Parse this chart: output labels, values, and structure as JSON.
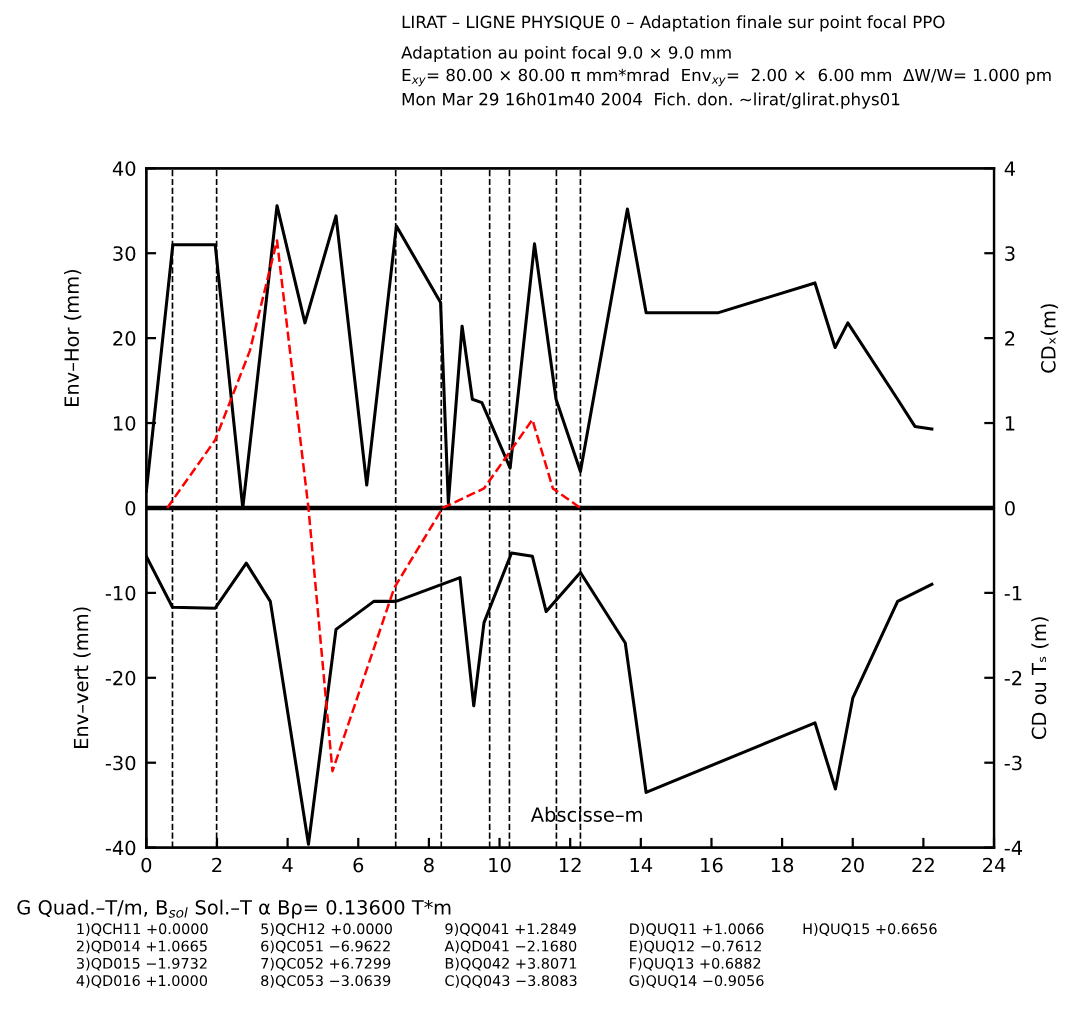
{
  "chart_data": {
    "type": "line",
    "title": "LIRAT – LIGNE PHYSIQUE 0 – Adaptation finale sur point focal PPO",
    "subtitle": "Adaptation au point focal 9.0 × 9.0 mm\nE$_{xy}$= 80.00 × 80.00 π mm*mrad  Env$_{xy}$=  2.00 ×  6.00 mm  ΔW/W= 1.000 pm\nMon Mar 29 16h01m40 2004  Fich. don. ~lirat/glirat.phys01",
    "xlabel": "Abscisse–m",
    "ylabel": "Env–Hor (mm)",
    "y2label": "CDₓ(m)",
    "xlim": [
      0,
      24
    ],
    "xticks": [
      0,
      2,
      4,
      6,
      8,
      10,
      12,
      14,
      16,
      18,
      20,
      22,
      24
    ],
    "ylim": [
      -40,
      40
    ],
    "yticks": [
      -40,
      -30,
      -20,
      -10,
      0,
      10,
      20,
      30,
      40
    ],
    "y2lim": [
      -4,
      4
    ],
    "y2ticks": [
      -4,
      -3,
      -2,
      -1,
      0,
      1,
      2,
      3,
      4
    ],
    "grid": false,
    "legend": false,
    "series": [
      {
        "color": "#000000",
        "line_style": "solid",
        "x": [
          0,
          0.75,
          1.95,
          2.73,
          3.7,
          4.49,
          5.37,
          6.24,
          7.08,
          8.33,
          8.55,
          8.94,
          9.23,
          9.5,
          10.3,
          10.99,
          11.6,
          12.29,
          13.62,
          14.15,
          16.2,
          18.93,
          19.5,
          19.86,
          21.27,
          21.76,
          22.24
        ],
        "values": [
          2,
          31,
          31,
          0,
          35.6,
          21.8,
          34.4,
          2.7,
          33.2,
          24.2,
          0.6,
          21.4,
          12.8,
          12.4,
          4.7,
          31.1,
          12.8,
          4.3,
          35.2,
          23,
          23,
          26.5,
          18.9,
          21.8,
          12.8,
          9.6,
          9.3
        ]
      },
      {
        "color": "#000000",
        "line_style": "solid",
        "x": [
          0,
          0.74,
          1.95,
          2.83,
          3.51,
          4.59,
          5.37,
          6.44,
          7.07,
          8.88,
          9.27,
          9.56,
          10.34,
          10.93,
          11.32,
          12.29,
          13.56,
          14.15,
          18.93,
          19.51,
          20,
          21.27,
          22.24
        ],
        "values": [
          -5.7,
          -11.7,
          -11.8,
          -6.5,
          -11,
          -39.6,
          -14.3,
          -11,
          -11,
          -8.2,
          -23.3,
          -13.5,
          -5.3,
          -5.7,
          -12.2,
          -7.6,
          -15.9,
          -33.5,
          -25.3,
          -33.1,
          -22.4,
          -11,
          -9
        ]
      },
      {
        "color": "#ff0000",
        "line_style": "dashed",
        "axis": "y2",
        "x": [
          0.59,
          1.95,
          2.93,
          3.7,
          4.39,
          4.59,
          5.27,
          7.02,
          8.39,
          9.56,
          10.93,
          11.51,
          12.29
        ],
        "values": [
          0,
          0.8,
          1.85,
          3.15,
          0.7,
          0,
          -3.1,
          -0.94,
          0,
          0.23,
          1.04,
          0.23,
          0
        ]
      }
    ],
    "ref_lines": [
      {
        "axis": "y",
        "value": 0,
        "color": "#000000",
        "line_style": "solid"
      },
      {
        "axis": "x",
        "value": 0.74,
        "color": "#000000",
        "line_style": "dashed"
      },
      {
        "axis": "x",
        "value": 1.99,
        "color": "#000000",
        "line_style": "dashed"
      },
      {
        "axis": "x",
        "value": 7.06,
        "color": "#000000",
        "line_style": "dashed"
      },
      {
        "axis": "x",
        "value": 8.35,
        "color": "#000000",
        "line_style": "dashed"
      },
      {
        "axis": "x",
        "value": 9.72,
        "color": "#000000",
        "line_style": "dashed"
      },
      {
        "axis": "x",
        "value": 10.28,
        "color": "#000000",
        "line_style": "dashed"
      },
      {
        "axis": "x",
        "value": 11.61,
        "color": "#000000",
        "line_style": "dashed"
      },
      {
        "axis": "x",
        "value": 12.29,
        "color": "#000000",
        "line_style": "dashed"
      }
    ],
    "annotations": [
      "Env–vert (mm)",
      "CD ou Tₛ (m)",
      "G Quad.–T/m, B$_{sol}$ Sol.–T α Bρ= 0.13600 T*m",
      "1)QCH11 +0.0000\n2)QD014 +1.0665\n3)QD015 −1.9732\n4)QD016 +1.0000",
      "5)QCH12 +0.0000\n6)QC051 −6.9622\n7)QC052 +6.7299\n8)QC053 −3.0639",
      "9)QQ041 +1.2849\nA)QD041 −2.1680\nB)QQ042 +3.8071\nC)QQ043 −3.8083",
      "D)QUQ11 +1.0066\nE)QUQ12 −0.7612\nF)QUQ13 +0.6882\nG)QUQ14 −0.9056",
      "H)QUQ15 +0.6656"
    ]
  }
}
